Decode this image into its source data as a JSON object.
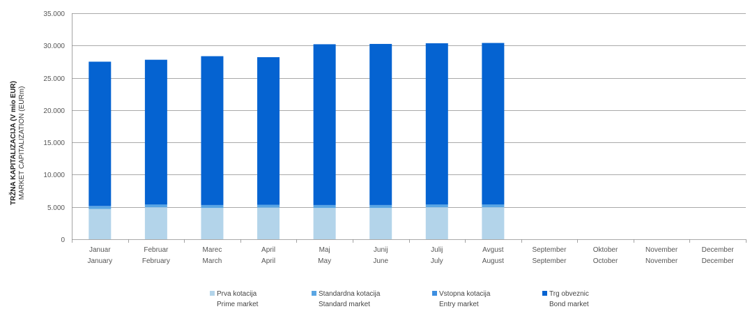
{
  "chart_data": {
    "type": "bar",
    "stacked": true,
    "ylabel": "TRŽNA KAPITALIZACIJA (V mio EUR)",
    "ylabel_sub": "MARKET CAPITALIZATION (EURm)",
    "ylim": [
      0,
      35000
    ],
    "yticks": [
      "0",
      "5.000",
      "10.000",
      "15.000",
      "20.000",
      "25.000",
      "30.000",
      "35.000"
    ],
    "grid": true,
    "categories": [
      {
        "sl": "Januar",
        "en": "January"
      },
      {
        "sl": "Februar",
        "en": "February"
      },
      {
        "sl": "Marec",
        "en": "March"
      },
      {
        "sl": "April",
        "en": "April"
      },
      {
        "sl": "Maj",
        "en": "May"
      },
      {
        "sl": "Junij",
        "en": "June"
      },
      {
        "sl": "Julij",
        "en": "July"
      },
      {
        "sl": "Avgust",
        "en": "August"
      },
      {
        "sl": "September",
        "en": "September"
      },
      {
        "sl": "Oktober",
        "en": "October"
      },
      {
        "sl": "November",
        "en": "November"
      },
      {
        "sl": "December",
        "en": "December"
      }
    ],
    "series": [
      {
        "name": "Prva kotacija",
        "name_en": "Prime market",
        "color": "#b3d4ea",
        "values": [
          4700,
          4950,
          4850,
          4900,
          4850,
          4850,
          4950,
          4950,
          null,
          null,
          null,
          null
        ]
      },
      {
        "name": "Standardna kotacija",
        "name_en": "Standard market",
        "color": "#5aa6e3",
        "values": [
          400,
          400,
          400,
          400,
          400,
          400,
          400,
          400,
          null,
          null,
          null,
          null
        ]
      },
      {
        "name": "Vstopna kotacija",
        "name_en": "Entry market",
        "color": "#3d8ee0",
        "values": [
          50,
          50,
          50,
          50,
          50,
          50,
          50,
          50,
          null,
          null,
          null,
          null
        ]
      },
      {
        "name": "Trg obveznic",
        "name_en": "Bond market",
        "color": "#0563d1",
        "values": [
          22350,
          22400,
          23050,
          22850,
          24900,
          24950,
          24950,
          25000,
          null,
          null,
          null,
          null
        ]
      }
    ],
    "legend_position": "bottom"
  }
}
